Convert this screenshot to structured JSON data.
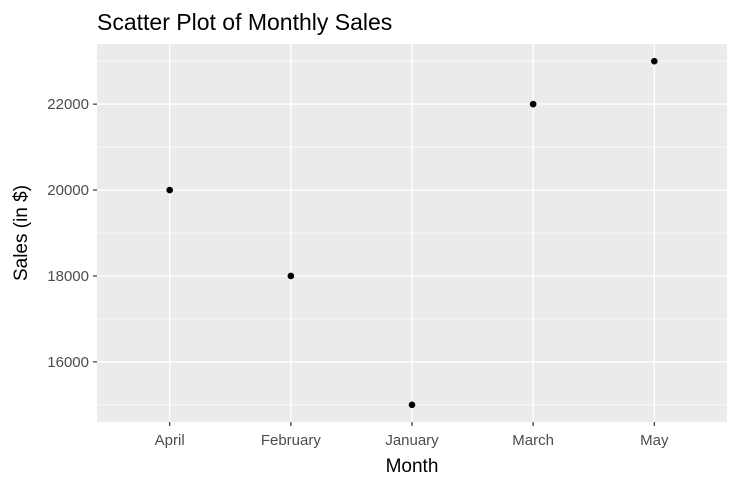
{
  "chart_data": {
    "type": "scatter",
    "title": "Scatter Plot of Monthly Sales",
    "xlabel": "Month",
    "ylabel": "Sales (in $)",
    "categories": [
      "April",
      "February",
      "January",
      "March",
      "May"
    ],
    "values": [
      20000,
      18000,
      15000,
      22000,
      23000
    ],
    "ylim": [
      14600,
      23400
    ],
    "yticks": [
      16000,
      18000,
      20000,
      22000
    ],
    "ytick_labels": [
      "16000",
      "18000",
      "20000",
      "22000"
    ],
    "grid": true,
    "legend": "none",
    "colors": {
      "panel_background": "#ebebeb",
      "grid_major": "#ffffff",
      "point": "#000000",
      "tick_text": "#4d4d4d",
      "tick_mark": "#333333"
    }
  }
}
